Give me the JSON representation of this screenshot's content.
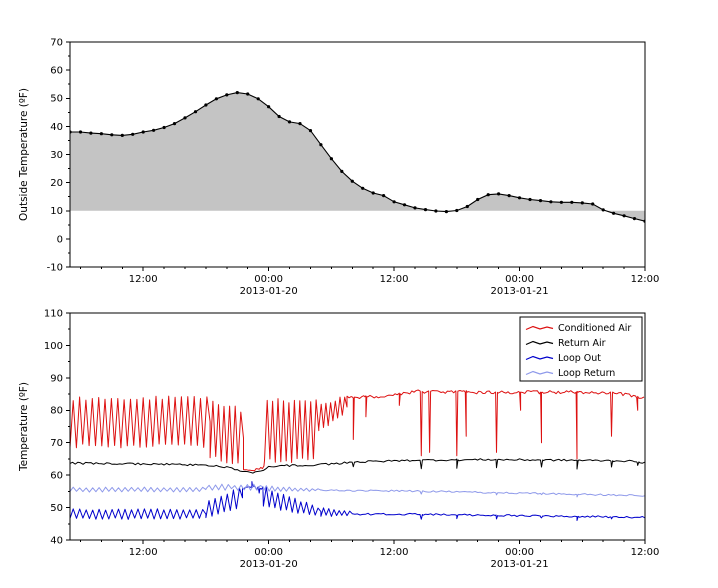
{
  "figure": {
    "background": "#ffffff"
  },
  "chart_data": [
    {
      "type": "area",
      "title": "",
      "ylabel": "Outside Temperature (ºF)",
      "xlabel": "",
      "ylim": [
        -10,
        70
      ],
      "yticks": [
        -10,
        0,
        10,
        20,
        30,
        40,
        50,
        60,
        70
      ],
      "xlim": [
        0,
        55
      ],
      "xticks": [
        {
          "t": 7,
          "label": "12:00"
        },
        {
          "t": 19,
          "label": "00:00",
          "date": "2013-01-20"
        },
        {
          "t": 31,
          "label": "12:00"
        },
        {
          "t": 43,
          "label": "00:00",
          "date": "2013-01-21"
        },
        {
          "t": 55,
          "label": "12:00"
        }
      ],
      "grid": false,
      "fill_baseline": 10,
      "colors": {
        "fill": "#c4c4c4",
        "line": "#000000",
        "marker": "#000000"
      },
      "marker": "circle",
      "points": [
        [
          0,
          38
        ],
        [
          1,
          38
        ],
        [
          2,
          37.6
        ],
        [
          3,
          37.4
        ],
        [
          4,
          37
        ],
        [
          5,
          36.8
        ],
        [
          6,
          37.2
        ],
        [
          7,
          38
        ],
        [
          8,
          38.6
        ],
        [
          9,
          39.6
        ],
        [
          10,
          41
        ],
        [
          11,
          43
        ],
        [
          12,
          45.2
        ],
        [
          13,
          47.6
        ],
        [
          14,
          49.8
        ],
        [
          15,
          51.2
        ],
        [
          16,
          52
        ],
        [
          17,
          51.5
        ],
        [
          18,
          49.8
        ],
        [
          19,
          47
        ],
        [
          20,
          43.5
        ],
        [
          21,
          41.6
        ],
        [
          22,
          41
        ],
        [
          23,
          38.5
        ],
        [
          24,
          33.5
        ],
        [
          25,
          28.5
        ],
        [
          26,
          24
        ],
        [
          27,
          20.5
        ],
        [
          28,
          18
        ],
        [
          29,
          16.3
        ],
        [
          30,
          15.4
        ],
        [
          31,
          13.2
        ],
        [
          32,
          12.1
        ],
        [
          33,
          11
        ],
        [
          34,
          10.4
        ],
        [
          35,
          9.9
        ],
        [
          36,
          9.7
        ],
        [
          37,
          10.1
        ],
        [
          38,
          11.5
        ],
        [
          39,
          14
        ],
        [
          40,
          15.7
        ],
        [
          41,
          16
        ],
        [
          42,
          15.4
        ],
        [
          43,
          14.6
        ],
        [
          44,
          14
        ],
        [
          45,
          13.6
        ],
        [
          46,
          13.2
        ],
        [
          47,
          13
        ],
        [
          48,
          13
        ],
        [
          49,
          12.8
        ],
        [
          50,
          12.4
        ],
        [
          51,
          10.3
        ],
        [
          52,
          9.1
        ],
        [
          53,
          8.2
        ],
        [
          54,
          7.2
        ],
        [
          55,
          6.3
        ]
      ]
    },
    {
      "type": "line",
      "title": "",
      "ylabel": "Temperature (ºF)",
      "xlabel": "",
      "ylim": [
        40,
        110
      ],
      "yticks": [
        40,
        50,
        60,
        70,
        80,
        90,
        100,
        110
      ],
      "xlim": [
        0,
        55
      ],
      "xticks": [
        {
          "t": 7,
          "label": "12:00"
        },
        {
          "t": 19,
          "label": "00:00",
          "date": "2013-01-20"
        },
        {
          "t": 31,
          "label": "12:00"
        },
        {
          "t": 43,
          "label": "00:00",
          "date": "2013-01-21"
        },
        {
          "t": 55,
          "label": "12:00"
        }
      ],
      "grid": false,
      "legend": {
        "position": "upper right",
        "entries": [
          "Conditioned Air",
          "Return Air",
          "Loop Out",
          "Loop Return"
        ]
      },
      "series": [
        {
          "name": "Conditioned Air",
          "color": "#dd1111",
          "segments": [
            {
              "type": "osc",
              "t0": 0,
              "t1": 13.4,
              "lo": 69,
              "hi": 83.5,
              "hi1": 84,
              "period": 0.62,
              "jit": 1.2
            },
            {
              "type": "osc",
              "t0": 13.4,
              "t1": 16.6,
              "lo": 66,
              "lo1": 63,
              "hi": 83,
              "hi1": 80,
              "period": 0.55,
              "jit": 1.5
            },
            {
              "type": "spikes",
              "t0": 16.6,
              "t1": 18.6,
              "levels": [
                [
                  16.6,
                  61.5
                ],
                [
                  17.2,
                  61.2
                ],
                [
                  18.0,
                  61.8
                ],
                [
                  18.6,
                  62.5
                ]
              ],
              "spikes": [],
              "noise": 0.4,
              "step": 0.15
            },
            {
              "type": "osc",
              "t0": 18.6,
              "t1": 23.8,
              "lo": 64.5,
              "hi": 83,
              "period": 0.5,
              "jit": 1.5
            },
            {
              "type": "osc",
              "t0": 23.8,
              "t1": 26.5,
              "lo": 74,
              "lo1": 78,
              "hi": 82,
              "hi1": 84,
              "period": 0.45,
              "jit": 1.0
            },
            {
              "type": "spikes",
              "t0": 26.5,
              "t1": 55,
              "levels": [
                [
                  26.5,
                  84
                ],
                [
                  30,
                  84.3
                ],
                [
                  33,
                  85.8
                ],
                [
                  40,
                  85.5
                ],
                [
                  48,
                  85.6
                ],
                [
                  53,
                  85
                ],
                [
                  54.5,
                  83.6
                ],
                [
                  55,
                  84
                ]
              ],
              "spikes": [
                [
                  27.1,
                  71
                ],
                [
                  28.3,
                  78
                ],
                [
                  31.5,
                  81.5
                ],
                [
                  33.6,
                  66
                ],
                [
                  34.4,
                  67
                ],
                [
                  37,
                  66
                ],
                [
                  37.9,
                  72
                ],
                [
                  40.8,
                  67
                ],
                [
                  43.1,
                  80
                ],
                [
                  45.1,
                  70
                ],
                [
                  48.5,
                  65
                ],
                [
                  51.8,
                  72
                ],
                [
                  54.3,
                  80
                ]
              ],
              "noise": 0.5,
              "step": 0.2
            }
          ]
        },
        {
          "name": "Return Air",
          "color": "#000000",
          "segments": [
            {
              "type": "spikes",
              "t0": 0,
              "t1": 55,
              "levels": [
                [
                  0,
                  63.7
                ],
                [
                  8,
                  63.4
                ],
                [
                  13,
                  63.1
                ],
                [
                  15.5,
                  62.2
                ],
                [
                  16.6,
                  61.2
                ],
                [
                  17.4,
                  60.8
                ],
                [
                  18.2,
                  61.1
                ],
                [
                  19,
                  62.4
                ],
                [
                  20.5,
                  62.9
                ],
                [
                  24,
                  63.2
                ],
                [
                  27,
                  64
                ],
                [
                  33,
                  64.6
                ],
                [
                  40,
                  64.8
                ],
                [
                  48,
                  64.6
                ],
                [
                  53,
                  64.4
                ],
                [
                  55,
                  63.9
                ]
              ],
              "spikes": [
                [
                  27.1,
                  62.6
                ],
                [
                  33.6,
                  62
                ],
                [
                  37,
                  62.1
                ],
                [
                  40.8,
                  62.3
                ],
                [
                  45.1,
                  62.5
                ],
                [
                  48.5,
                  61.9
                ],
                [
                  51.8,
                  62.5
                ],
                [
                  54.3,
                  63
                ]
              ],
              "noise": 0.3,
              "step": 0.25
            }
          ]
        },
        {
          "name": "Loop Out",
          "color": "#0000cc",
          "segments": [
            {
              "type": "osc",
              "t0": 0,
              "t1": 13,
              "lo": 46.6,
              "hi": 49.4,
              "period": 0.62,
              "jit": 0.5
            },
            {
              "type": "osc",
              "t0": 13,
              "t1": 16.5,
              "lo": 47,
              "lo1": 50,
              "hi": 52,
              "hi1": 56,
              "period": 0.6,
              "jit": 0.8
            },
            {
              "type": "spikes",
              "t0": 16.5,
              "t1": 18.5,
              "levels": [
                [
                  16.5,
                  55.5
                ],
                [
                  17.1,
                  56.6
                ],
                [
                  17.8,
                  55.9
                ],
                [
                  18.5,
                  56
                ]
              ],
              "spikes": [
                [
                  17.4,
                  58
                ],
                [
                  18.1,
                  54.5
                ]
              ],
              "noise": 0.6,
              "step": 0.15
            },
            {
              "type": "osc",
              "t0": 18.5,
              "t1": 24,
              "lo": 50.5,
              "lo1": 47.5,
              "hi": 56,
              "hi1": 50,
              "period": 0.55,
              "jit": 0.7
            },
            {
              "type": "osc",
              "t0": 24,
              "t1": 27,
              "lo": 47.4,
              "hi": 50,
              "hi1": 48.8,
              "period": 0.5,
              "jit": 0.5
            },
            {
              "type": "spikes",
              "t0": 27,
              "t1": 55,
              "levels": [
                [
                  27,
                  48
                ],
                [
                  33,
                  47.9
                ],
                [
                  40,
                  47.6
                ],
                [
                  48,
                  47.3
                ],
                [
                  55,
                  47
                ]
              ],
              "spikes": [
                [
                  33.6,
                  46.4
                ],
                [
                  37,
                  46.6
                ],
                [
                  40.8,
                  46.5
                ],
                [
                  45.1,
                  46.8
                ],
                [
                  48.5,
                  46
                ],
                [
                  51.8,
                  46.5
                ]
              ],
              "noise": 0.3,
              "step": 0.25
            }
          ]
        },
        {
          "name": "Loop Return",
          "color": "#8e99ea",
          "segments": [
            {
              "type": "osc",
              "t0": 0,
              "t1": 13,
              "lo": 54.9,
              "hi": 56.2,
              "period": 0.62,
              "jit": 0.3
            },
            {
              "type": "osc",
              "t0": 13,
              "t1": 18.5,
              "lo": 55.6,
              "hi": 57,
              "period": 0.6,
              "jit": 0.5
            },
            {
              "type": "osc",
              "t0": 18.5,
              "t1": 24,
              "lo": 55.1,
              "hi": 56.6,
              "hi1": 55.7,
              "period": 0.55,
              "jit": 0.3
            },
            {
              "type": "spikes",
              "t0": 24,
              "t1": 55,
              "levels": [
                [
                  24,
                  55.3
                ],
                [
                  30,
                  55.2
                ],
                [
                  36,
                  54.9
                ],
                [
                  44,
                  54.4
                ],
                [
                  50,
                  54
                ],
                [
                  55,
                  53.7
                ]
              ],
              "spikes": [
                [
                  33.6,
                  54.2
                ],
                [
                  40.8,
                  53.9
                ],
                [
                  45.1,
                  54
                ],
                [
                  48.5,
                  53.3
                ]
              ],
              "noise": 0.25,
              "step": 0.25
            }
          ]
        }
      ]
    }
  ]
}
